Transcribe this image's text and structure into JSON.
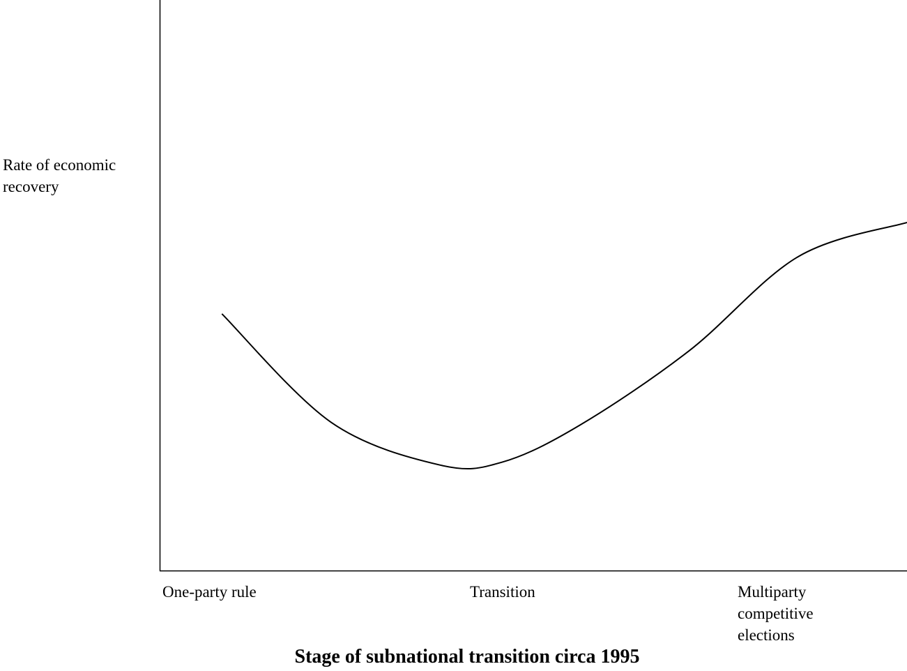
{
  "chart_data": {
    "type": "line",
    "xlabel": "Stage of subnational transition circa 1995",
    "ylabel": "Rate of economic recovery",
    "categories": [
      "One-party rule",
      "Transition",
      "Multiparty\ncompetitive\nelections"
    ],
    "tick_labels": {
      "one_party": "One-party rule",
      "transition": "Transition",
      "multiparty": "Multiparty\ncompetitive\nelections"
    },
    "xlim": [
      0,
      2.4
    ],
    "ylim": [
      0,
      10
    ],
    "grid": false,
    "legend": "none",
    "series": [
      {
        "x": [
          0.2,
          0.55,
          0.9,
          1.1,
          1.35,
          1.7,
          2.05,
          2.4
        ],
        "y": [
          4.5,
          2.6,
          1.85,
          1.9,
          2.55,
          3.85,
          5.5,
          6.1
        ]
      }
    ],
    "colors": {
      "line": "#000000",
      "axis": "#000000"
    }
  }
}
